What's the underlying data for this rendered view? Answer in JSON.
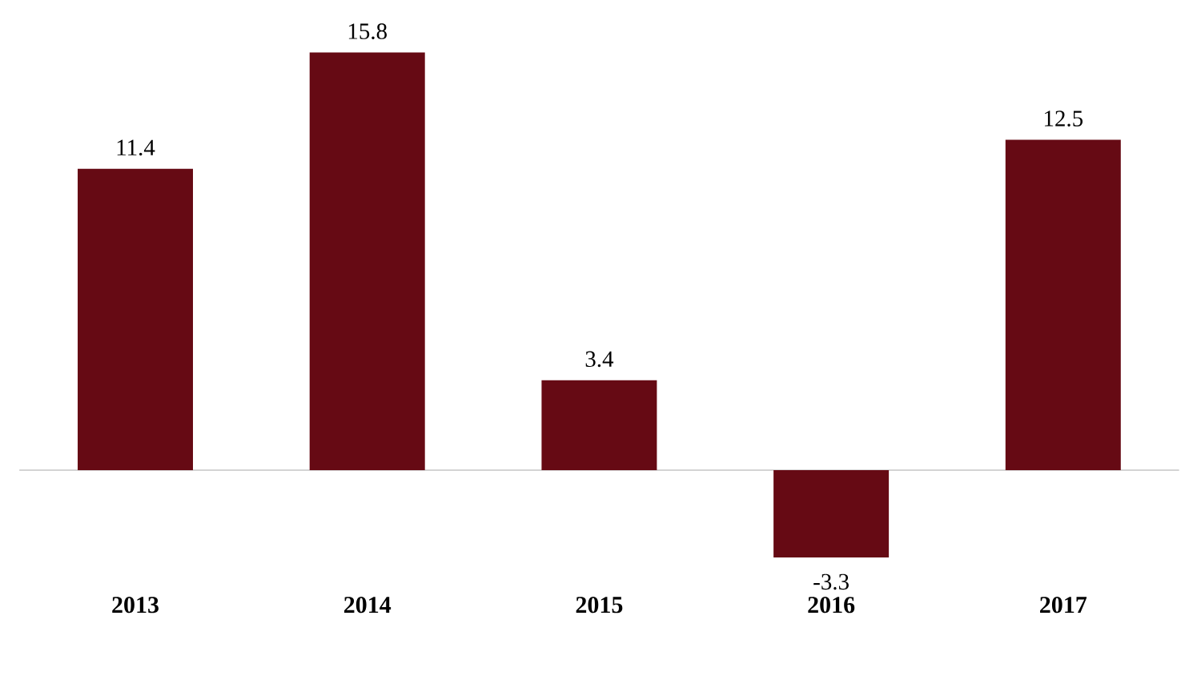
{
  "chart_data": {
    "type": "bar",
    "categories": [
      "2013",
      "2014",
      "2015",
      "2016",
      "2017"
    ],
    "values": [
      11.4,
      15.8,
      3.4,
      -3.3,
      12.5
    ],
    "color": "#660a14",
    "data_labels": true
  }
}
